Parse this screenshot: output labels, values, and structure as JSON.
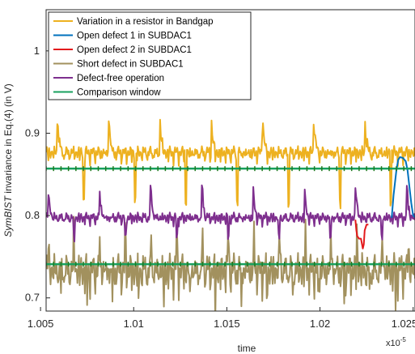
{
  "chart_data": {
    "type": "line",
    "xlabel": "time",
    "ylabel_parts": [
      "Sym",
      "BIST",
      " invariance in Eq.(4) (in V)"
    ],
    "x_exponent_label": "x10",
    "x_exponent_power": "-5",
    "xlim": [
      1.0053,
      1.0251
    ],
    "ylim": [
      0.684,
      1.05
    ],
    "x_ticks": [
      1.005,
      1.01,
      1.015,
      1.02,
      1.025
    ],
    "x_tick_labels": [
      "1.005",
      "1.01",
      "1.015",
      "1.02",
      "1.025"
    ],
    "y_ticks": [
      0.7,
      0.8,
      0.9,
      1.0
    ],
    "y_tick_labels": [
      "0.7",
      "0.8",
      "0.9",
      "1"
    ],
    "grid": false,
    "legend_position": "top-left",
    "series": [
      {
        "name": "Variation in a resistor in Bandgap",
        "color": "#EDB120",
        "baseline": 0.877,
        "ripple": 0.0075,
        "spike": 0.038,
        "spike_drop": -0.058,
        "spike_period": 0.00275,
        "spike_phase": 0.0006,
        "notch_depth": -0.01
      },
      {
        "name": "Open defect 1 in SUBDAC1",
        "color": "#0072BD",
        "x": [
          1.02385,
          1.02395,
          1.0241,
          1.0242,
          1.0243,
          1.02445,
          1.0246,
          1.0247,
          1.0248,
          1.0249,
          1.025,
          1.0251
        ],
        "y": [
          0.797,
          0.825,
          0.855,
          0.868,
          0.871,
          0.87,
          0.866,
          0.855,
          0.835,
          0.815,
          0.8,
          0.798
        ]
      },
      {
        "name": "Open defect 2 in SUBDAC1",
        "color": "#E31A1C",
        "x": [
          1.0219,
          1.02195,
          1.022,
          1.0221,
          1.0222,
          1.0223,
          1.02235,
          1.0224,
          1.0225,
          1.0226
        ],
        "y": [
          0.795,
          0.782,
          0.775,
          0.772,
          0.772,
          0.76,
          0.765,
          0.782,
          0.789,
          0.789
        ]
      },
      {
        "name": "Short defect in SUBDAC1",
        "color": "#A2915E",
        "baseline": 0.735,
        "ripple": 0.02,
        "spike": 0.045,
        "spike_drop": -0.04,
        "spike_period": 0.00138,
        "spike_phase": 0.0001,
        "notch_depth": -0.02
      },
      {
        "name": "Defect-free operation",
        "color": "#7E2F8E",
        "baseline": 0.798,
        "ripple": 0.006,
        "spike": 0.033,
        "spike_drop": -0.025,
        "spike_period": 0.00275,
        "spike_phase": 0.0001,
        "notch_depth": -0.006
      },
      {
        "name": "Comparison window",
        "color": "#17A05E",
        "marker_color": "#1F7A1F",
        "upper": 0.857,
        "lower": 0.741,
        "marker_step": 0.0004
      }
    ]
  }
}
